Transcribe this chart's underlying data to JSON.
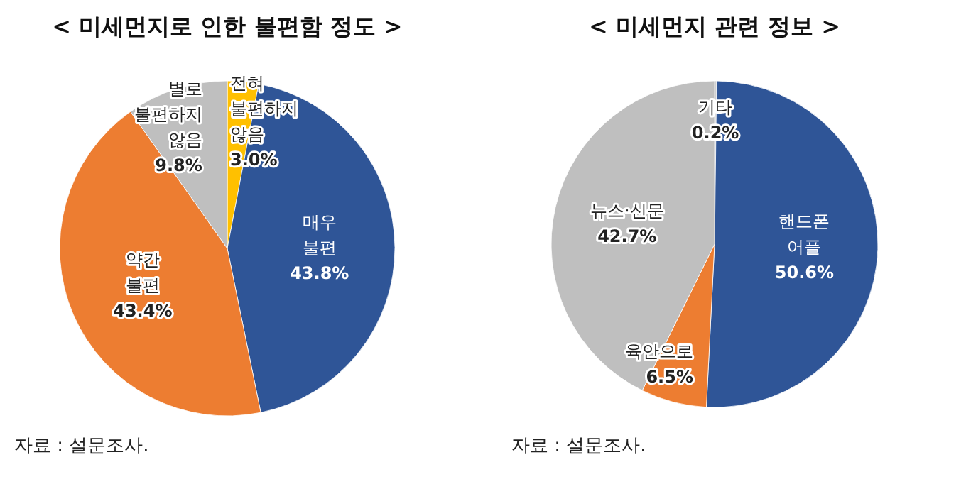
{
  "chart_data": [
    {
      "type": "pie",
      "title": "< 미세먼지로 인한 불편함 정도 >",
      "categories": [
        "전혀 불편하지 않음",
        "매우 불편",
        "약간 불편",
        "별로 불편하지 않음"
      ],
      "values": [
        3.0,
        43.8,
        43.4,
        9.8
      ],
      "value_labels": [
        "3.0%",
        "43.8%",
        "43.4%",
        "9.8%"
      ],
      "colors": [
        "#ffc000",
        "#2f5597",
        "#ed7d31",
        "#bfbfbf"
      ],
      "annotations": [
        "자료 : 설문조사."
      ]
    },
    {
      "type": "pie",
      "title": "< 미세먼지 관련 정보 >",
      "categories": [
        "기타",
        "핸드폰 어플",
        "육안으로",
        "뉴스·신문"
      ],
      "values": [
        0.2,
        50.6,
        6.5,
        42.7
      ],
      "value_labels": [
        "0.2%",
        "50.6%",
        "6.5%",
        "42.7%"
      ],
      "colors": [
        "#d0d0d0",
        "#2f5597",
        "#ed7d31",
        "#bfbfbf"
      ],
      "annotations": [
        "자료 : 설문조사."
      ]
    }
  ]
}
